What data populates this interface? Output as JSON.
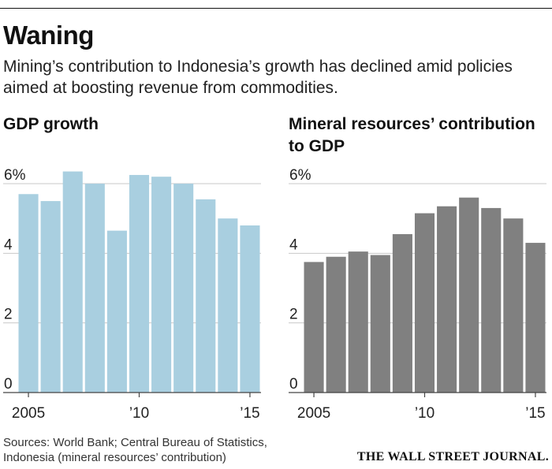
{
  "header": {
    "title": "Waning",
    "subtitle": "Mining’s contribution to Indonesia’s growth has declined amid policies aimed at boosting revenue from commodities."
  },
  "chart_data": [
    {
      "type": "bar",
      "title": "GDP growth",
      "color": "#a9cfe0",
      "categories": [
        "2005",
        "2006",
        "2007",
        "2008",
        "2009",
        "2010",
        "2011",
        "2012",
        "2013",
        "2014",
        "2015"
      ],
      "values": [
        5.7,
        5.5,
        6.35,
        6.0,
        4.65,
        6.25,
        6.2,
        6.0,
        5.55,
        5.0,
        4.8
      ],
      "ylim": [
        0,
        6
      ],
      "ytick_values": [
        0,
        2,
        4,
        6
      ],
      "ytick_labels": [
        "0",
        "2",
        "4",
        "6%"
      ],
      "xtick_labels": {
        "2005": "2005",
        "2010": "’10",
        "2015": "’15"
      },
      "xlabel": "",
      "ylabel": ""
    },
    {
      "type": "bar",
      "title": "Mineral resources’ contribution to GDP",
      "color": "#808080",
      "categories": [
        "2005",
        "2006",
        "2007",
        "2008",
        "2009",
        "2010",
        "2011",
        "2012",
        "2013",
        "2014",
        "2015"
      ],
      "values": [
        3.75,
        3.9,
        4.05,
        3.95,
        4.55,
        5.15,
        5.35,
        5.6,
        5.3,
        5.0,
        4.3
      ],
      "ylim": [
        0,
        6
      ],
      "ytick_values": [
        0,
        2,
        4,
        6
      ],
      "ytick_labels": [
        "0",
        "2",
        "4",
        "6%"
      ],
      "xtick_labels": {
        "2005": "2005",
        "2010": "’10",
        "2015": "’15"
      },
      "xlabel": "",
      "ylabel": ""
    }
  ],
  "footer": {
    "source_line1": "Sources: World Bank; Central Bureau of Statistics,",
    "source_line2": "Indonesia (mineral resources’ contribution)",
    "logo": "THE WALL STREET JOURNAL."
  }
}
